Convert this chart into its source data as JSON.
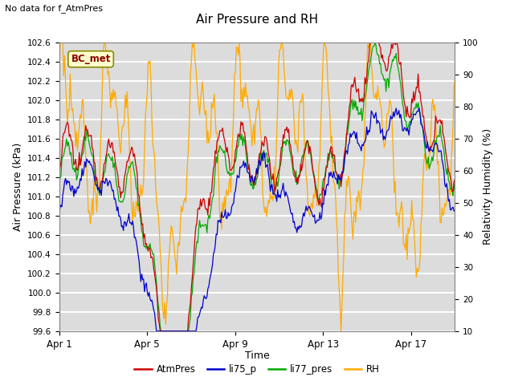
{
  "title": "Air Pressure and RH",
  "subtitle": "No data for f_AtmPres",
  "ylabel_left": "Air Pressure (kPa)",
  "ylabel_right": "Relativity Humidity (%)",
  "xlabel": "Time",
  "xlim_days": [
    0,
    18
  ],
  "ylim_left": [
    99.6,
    102.6
  ],
  "ylim_right": [
    10,
    100
  ],
  "xtick_positions": [
    0,
    4,
    8,
    12,
    16
  ],
  "xtick_labels": [
    "Apr 1",
    "Apr 5",
    "Apr 9",
    "Apr 13",
    "Apr 17"
  ],
  "ytick_left": [
    99.6,
    99.8,
    100.0,
    100.2,
    100.4,
    100.6,
    100.8,
    101.0,
    101.2,
    101.4,
    101.6,
    101.8,
    102.0,
    102.2,
    102.4,
    102.6
  ],
  "ytick_right": [
    10,
    20,
    30,
    40,
    50,
    60,
    70,
    80,
    90,
    100
  ],
  "bg_color": "#ffffff",
  "plot_bg_color": "#dcdcdc",
  "grid_color": "#ffffff",
  "colors": {
    "AtmPres": "#cc0000",
    "li75_p": "#0000cc",
    "li77_pres": "#00aa00",
    "RH": "#ffaa00"
  },
  "legend_entries": [
    "AtmPres",
    "li75_p",
    "li77_pres",
    "RH"
  ],
  "legend_colors": [
    "#cc0000",
    "#0000cc",
    "#00aa00",
    "#ffaa00"
  ],
  "station_label": "BC_met",
  "station_label_color": "#880000",
  "station_box_color": "#ffffcc",
  "station_box_edge": "#888800"
}
